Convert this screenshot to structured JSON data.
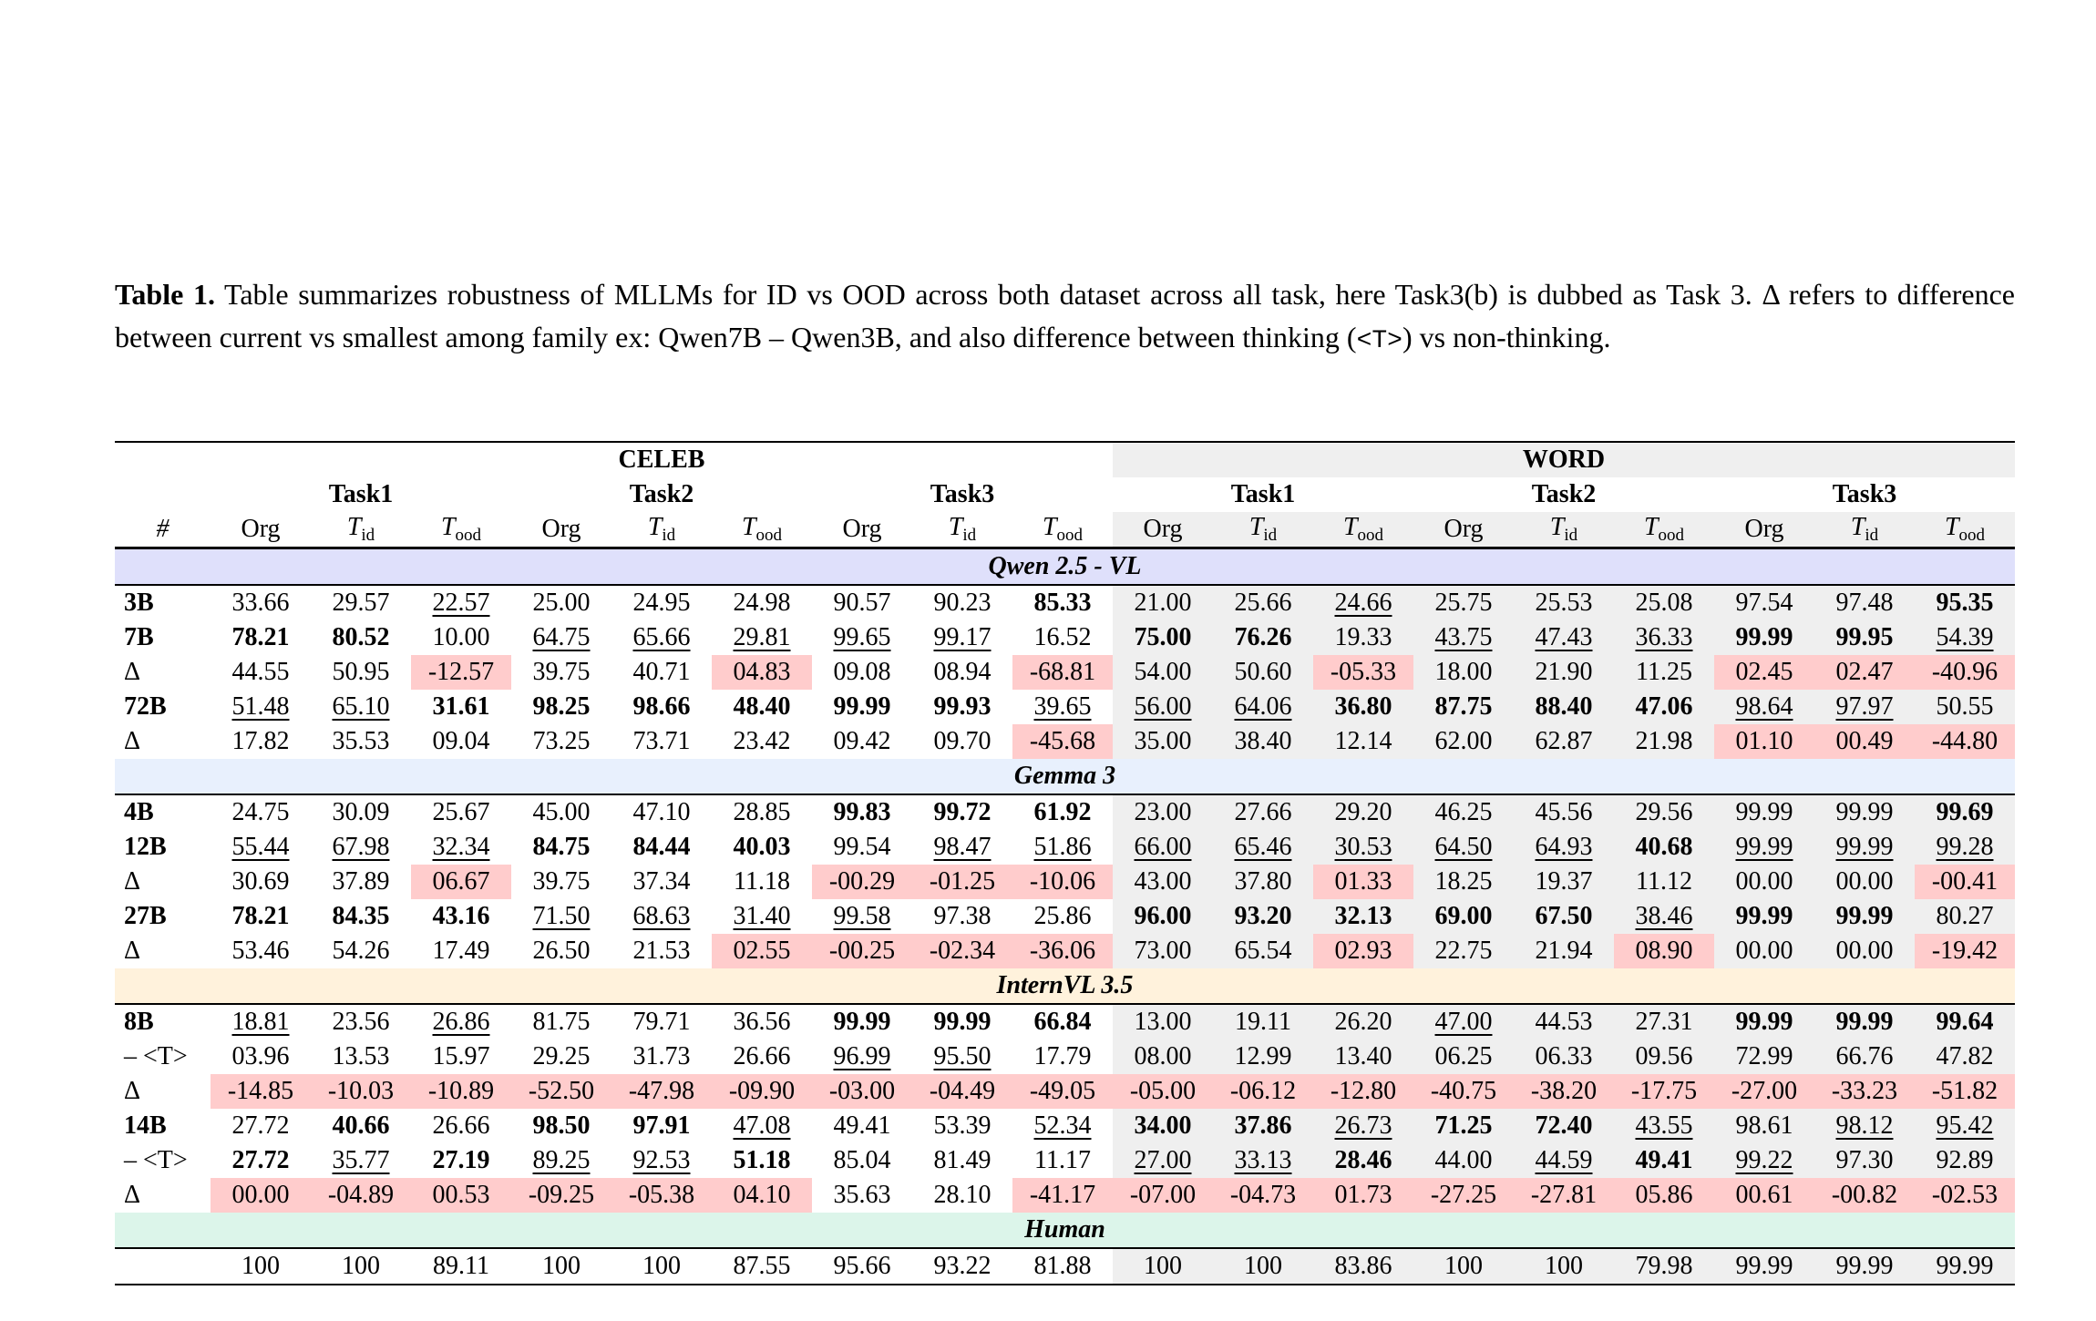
{
  "caption": {
    "label": "Table 1.",
    "text_before": " Table summarizes robustness of MLLMs for ID vs OOD across both dataset across all task, here Task3(b) is dubbed as Task 3. Δ refers to difference between current vs smallest among family ex: Qwen7B – Qwen3B, and also difference between thinking (",
    "code": "<T>",
    "text_after": ") vs non-thinking."
  },
  "header": {
    "datasets": [
      "CELEB",
      "WORD"
    ],
    "tasks": [
      "Task1",
      "Task2",
      "Task3"
    ],
    "hash": "#",
    "columns": [
      {
        "main": "Org",
        "sub": ""
      },
      {
        "main": "T",
        "sub": "id"
      },
      {
        "main": "T",
        "sub": "ood"
      }
    ]
  },
  "colors": {
    "word_bg": "#efefef",
    "highlight": "#ffcccc",
    "qwen": "#dfe0fb",
    "gemma": "#e8f0fd",
    "intern": "#fff2dc",
    "human": "#dcf5ea"
  },
  "groups": [
    {
      "name": "Qwen 2.5 - VL",
      "key": "qwen",
      "rows": [
        {
          "label": "3B",
          "cells": [
            "33.66",
            "29.57",
            "22.57|u",
            "25.00",
            "24.95",
            "24.98",
            "90.57",
            "90.23",
            "85.33|b",
            "21.00",
            "25.66",
            "24.66|u",
            "25.75",
            "25.53",
            "25.08",
            "97.54",
            "97.48",
            "95.35|b"
          ]
        },
        {
          "label": "7B",
          "cells": [
            "78.21|b",
            "80.52|b",
            "10.00",
            "64.75|u",
            "65.66|u",
            "29.81|u",
            "99.65|u",
            "99.17|u",
            "16.52",
            "75.00|b",
            "76.26|b",
            "19.33",
            "43.75|u",
            "47.43|u",
            "36.33|u",
            "99.99|b",
            "99.95|b",
            "54.39|u"
          ]
        },
        {
          "label": "Δ",
          "cells": [
            "44.55",
            "50.95",
            "-12.57|h",
            "39.75",
            "40.71",
            "04.83|h",
            "09.08",
            "08.94",
            "-68.81|h",
            "54.00",
            "50.60",
            "-05.33|h",
            "18.00",
            "21.90",
            "11.25",
            "02.45|h",
            "02.47|h",
            "-40.96|h"
          ]
        },
        {
          "label": "72B",
          "cells": [
            "51.48|u",
            "65.10|u",
            "31.61|b",
            "98.25|b",
            "98.66|b",
            "48.40|b",
            "99.99|b",
            "99.93|b",
            "39.65|u",
            "56.00|u",
            "64.06|u",
            "36.80|b",
            "87.75|b",
            "88.40|b",
            "47.06|b",
            "98.64|u",
            "97.97|u",
            "50.55"
          ]
        },
        {
          "label": "Δ",
          "cells": [
            "17.82",
            "35.53",
            "09.04",
            "73.25",
            "73.71",
            "23.42",
            "09.42",
            "09.70",
            "-45.68|h",
            "35.00",
            "38.40",
            "12.14",
            "62.00",
            "62.87",
            "21.98",
            "01.10|h",
            "00.49|h",
            "-44.80|h"
          ]
        }
      ]
    },
    {
      "name": "Gemma 3",
      "key": "gemma",
      "rows": [
        {
          "label": "4B",
          "cells": [
            "24.75",
            "30.09",
            "25.67",
            "45.00",
            "47.10",
            "28.85",
            "99.83|b",
            "99.72|b",
            "61.92|b",
            "23.00",
            "27.66",
            "29.20",
            "46.25",
            "45.56",
            "29.56",
            "99.99",
            "99.99",
            "99.69|b"
          ]
        },
        {
          "label": "12B",
          "cells": [
            "55.44|u",
            "67.98|u",
            "32.34|u",
            "84.75|b",
            "84.44|b",
            "40.03|b",
            "99.54",
            "98.47|u",
            "51.86|u",
            "66.00|u",
            "65.46|u",
            "30.53|u",
            "64.50|u",
            "64.93|u",
            "40.68|b",
            "99.99|u",
            "99.99|u",
            "99.28|u"
          ]
        },
        {
          "label": "Δ",
          "cells": [
            "30.69",
            "37.89",
            "06.67|h",
            "39.75",
            "37.34",
            "11.18",
            "-00.29|h",
            "-01.25|h",
            "-10.06|h",
            "43.00",
            "37.80",
            "01.33|h",
            "18.25",
            "19.37",
            "11.12",
            "00.00",
            "00.00",
            "-00.41|h"
          ]
        },
        {
          "label": "27B",
          "cells": [
            "78.21|b",
            "84.35|b",
            "43.16|b",
            "71.50|u",
            "68.63|u",
            "31.40|u",
            "99.58|u",
            "97.38",
            "25.86",
            "96.00|b",
            "93.20|b",
            "32.13|b",
            "69.00|b",
            "67.50|b",
            "38.46|u",
            "99.99|b",
            "99.99|b",
            "80.27"
          ]
        },
        {
          "label": "Δ",
          "cells": [
            "53.46",
            "54.26",
            "17.49",
            "26.50",
            "21.53",
            "02.55|h",
            "-00.25|h",
            "-02.34|h",
            "-36.06|h",
            "73.00",
            "65.54",
            "02.93|h",
            "22.75",
            "21.94",
            "08.90|h",
            "00.00",
            "00.00",
            "-19.42|h"
          ]
        }
      ]
    },
    {
      "name": "InternVL 3.5",
      "key": "intern",
      "rows": [
        {
          "label": "8B",
          "cells": [
            "18.81|u",
            "23.56",
            "26.86|u",
            "81.75",
            "79.71",
            "36.56",
            "99.99|b",
            "99.99|b",
            "66.84|b",
            "13.00",
            "19.11",
            "26.20",
            "47.00|u",
            "44.53",
            "27.31",
            "99.99|b",
            "99.99|b",
            "99.64|b"
          ]
        },
        {
          "label": "– <T>",
          "cells": [
            "03.96",
            "13.53",
            "15.97",
            "29.25",
            "31.73",
            "26.66",
            "96.99|u",
            "95.50|u",
            "17.79",
            "08.00",
            "12.99",
            "13.40",
            "06.25",
            "06.33",
            "09.56",
            "72.99",
            "66.76",
            "47.82"
          ]
        },
        {
          "label": "Δ",
          "cells": [
            "-14.85|h",
            "-10.03|h",
            "-10.89|h",
            "-52.50|h",
            "-47.98|h",
            "-09.90|h",
            "-03.00|h",
            "-04.49|h",
            "-49.05|h",
            "-05.00|h",
            "-06.12|h",
            "-12.80|h",
            "-40.75|h",
            "-38.20|h",
            "-17.75|h",
            "-27.00|h",
            "-33.23|h",
            "-51.82|h"
          ]
        },
        {
          "label": "14B",
          "cells": [
            "27.72",
            "40.66|b",
            "26.66",
            "98.50|b",
            "97.91|b",
            "47.08|u",
            "49.41",
            "53.39",
            "52.34|u",
            "34.00|b",
            "37.86|b",
            "26.73|u",
            "71.25|b",
            "72.40|b",
            "43.55|u",
            "98.61",
            "98.12|u",
            "95.42|u"
          ]
        },
        {
          "label": "– <T>",
          "cells": [
            "27.72|b",
            "35.77|u",
            "27.19|b",
            "89.25|u",
            "92.53|u",
            "51.18|b",
            "85.04",
            "81.49",
            "11.17",
            "27.00|u",
            "33.13|u",
            "28.46|b",
            "44.00",
            "44.59|u",
            "49.41|b",
            "99.22|u",
            "97.30",
            "92.89"
          ]
        },
        {
          "label": "Δ",
          "cells": [
            "00.00|h",
            "-04.89|h",
            "00.53|h",
            "-09.25|h",
            "-05.38|h",
            "04.10|h",
            "35.63",
            "28.10",
            "-41.17|h",
            "-07.00|h",
            "-04.73|h",
            "01.73|h",
            "-27.25|h",
            "-27.81|h",
            "05.86|h",
            "00.61|h",
            "-00.82|h",
            "-02.53|h"
          ]
        }
      ]
    },
    {
      "name": "Human",
      "key": "human",
      "rows": [
        {
          "label": "",
          "cells": [
            "100",
            "100",
            "89.11",
            "100",
            "100",
            "87.55",
            "95.66",
            "93.22",
            "81.88",
            "100",
            "100",
            "83.86",
            "100",
            "100",
            "79.98",
            "99.99",
            "99.99",
            "99.99"
          ]
        }
      ]
    }
  ]
}
